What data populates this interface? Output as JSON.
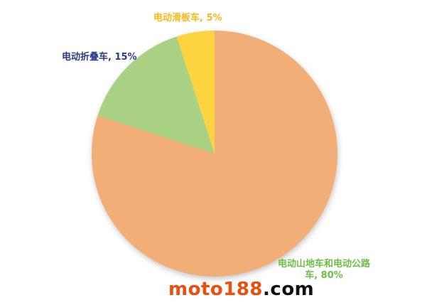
{
  "page": {
    "background": "#FFFFFF"
  },
  "chart_data": {
    "type": "pie",
    "title": "",
    "legend": "none",
    "start_angle_deg": 0,
    "direction": "clockwise",
    "data_label_format": "category, percent",
    "unit": "%",
    "slices": [
      {
        "id": "mountain-road",
        "label": "电动山地车和电动公路车",
        "value": 80,
        "color": "#F1AE76",
        "label_color": "#6EBE45"
      },
      {
        "id": "folding",
        "label": "电动折叠车",
        "value": 15,
        "color": "#A8D184",
        "label_color": "#2A3B8F"
      },
      {
        "id": "scooter",
        "label": "电动滑板车",
        "value": 5,
        "color": "#FCD440",
        "label_color": "#FBB918"
      }
    ]
  },
  "data_labels": {
    "scooter": "电动滑板车, 5%",
    "folding": "电动折叠车, 15%",
    "mountain_line1": "电动山地车和电动公路",
    "mountain_line2": "车, 80%"
  },
  "watermark": {
    "brand": "moto188",
    "suffix": ".com",
    "brand_color": "#EB4E0D",
    "suffix_color": "#111111"
  }
}
